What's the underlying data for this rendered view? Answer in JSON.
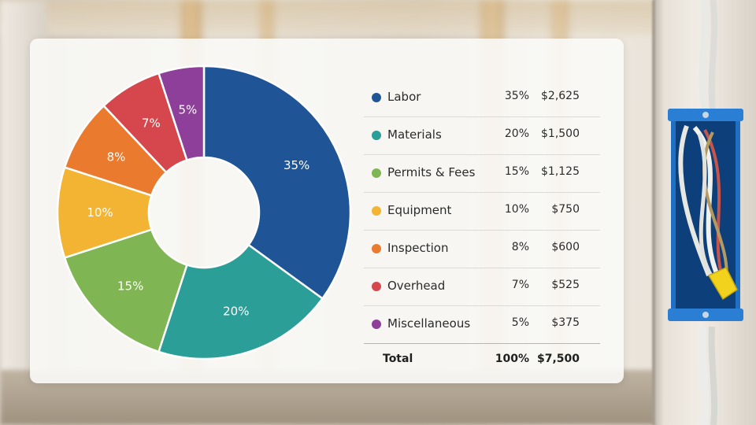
{
  "chart_data": {
    "type": "pie",
    "style": "donut",
    "title": "",
    "categories": [
      "Labor",
      "Materials",
      "Permits & Fees",
      "Equipment",
      "Inspection",
      "Overhead",
      "Miscellaneous"
    ],
    "values": [
      35,
      20,
      15,
      10,
      8,
      7,
      5
    ],
    "slice_labels": [
      "35%",
      "20%",
      "15%",
      "10%",
      "8%",
      "7%",
      "5%"
    ],
    "amounts": [
      "$2,625",
      "$1,500",
      "$1,125",
      "$750",
      "$600",
      "$525",
      "$375"
    ],
    "colors": [
      "#1f5596",
      "#2a9e97",
      "#80b553",
      "#f2b432",
      "#ea7a2e",
      "#d6474d",
      "#8e3f99"
    ],
    "legend_placement": "right"
  },
  "legend": {
    "rows": [
      {
        "name": "Labor",
        "pct": "35%",
        "amount": "$2,625"
      },
      {
        "name": "Materials",
        "pct": "20%",
        "amount": "$1,500"
      },
      {
        "name": "Permits & Fees",
        "pct": "15%",
        "amount": "$1,125"
      },
      {
        "name": "Equipment",
        "pct": "10%",
        "amount": "$750"
      },
      {
        "name": "Inspection",
        "pct": "8%",
        "amount": "$600"
      },
      {
        "name": "Overhead",
        "pct": "7%",
        "amount": "$525"
      },
      {
        "name": "Miscellaneous",
        "pct": "5%",
        "amount": "$375"
      }
    ],
    "total": {
      "name": "Total",
      "pct": "100%",
      "amount": "$7,500"
    }
  },
  "background": {
    "scene": "construction-site",
    "icons": [
      "electrical-box-icon",
      "wires-icon",
      "wire-nut-icon"
    ]
  }
}
